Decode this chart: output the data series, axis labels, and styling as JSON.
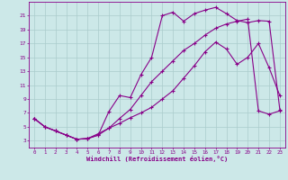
{
  "xlabel": "Windchill (Refroidissement éolien,°C)",
  "bg_color": "#cce8e8",
  "line_color": "#880088",
  "grid_color": "#aacccc",
  "line1_x": [
    0,
    1,
    2,
    3,
    4,
    5,
    6,
    7,
    8,
    9,
    10,
    11,
    12,
    13,
    14,
    15,
    16,
    17,
    18,
    19,
    20,
    21,
    22,
    23
  ],
  "line1_y": [
    6.2,
    5.0,
    4.4,
    3.8,
    3.2,
    3.3,
    4.0,
    4.8,
    5.5,
    6.3,
    7.0,
    7.8,
    9.0,
    10.2,
    12.0,
    13.8,
    15.8,
    17.2,
    16.2,
    14.0,
    15.0,
    17.0,
    13.5,
    9.5
  ],
  "line2_x": [
    0,
    1,
    2,
    3,
    4,
    5,
    6,
    7,
    8,
    9,
    10,
    11,
    12,
    13,
    14,
    15,
    16,
    17,
    18,
    19,
    20,
    21,
    22,
    23
  ],
  "line2_y": [
    6.2,
    5.0,
    4.4,
    3.8,
    3.2,
    3.3,
    3.8,
    7.2,
    9.5,
    9.2,
    12.5,
    15.0,
    21.0,
    21.5,
    20.2,
    21.3,
    21.8,
    22.2,
    21.3,
    20.3,
    20.0,
    20.3,
    20.2,
    7.5
  ],
  "line3_x": [
    0,
    1,
    2,
    3,
    4,
    5,
    6,
    7,
    8,
    9,
    10,
    11,
    12,
    13,
    14,
    15,
    16,
    17,
    18,
    19,
    20,
    21,
    22,
    23
  ],
  "line3_y": [
    6.2,
    5.0,
    4.4,
    3.8,
    3.2,
    3.3,
    3.8,
    4.8,
    6.2,
    7.5,
    9.5,
    11.5,
    13.0,
    14.5,
    16.0,
    17.0,
    18.2,
    19.2,
    19.8,
    20.2,
    20.5,
    7.3,
    6.8,
    7.3
  ],
  "xlim": [
    -0.5,
    23.5
  ],
  "ylim": [
    2,
    23
  ],
  "xticks": [
    0,
    1,
    2,
    3,
    4,
    5,
    6,
    7,
    8,
    9,
    10,
    11,
    12,
    13,
    14,
    15,
    16,
    17,
    18,
    19,
    20,
    21,
    22,
    23
  ],
  "yticks": [
    3,
    5,
    7,
    9,
    11,
    13,
    15,
    17,
    19,
    21
  ],
  "marker": "+"
}
